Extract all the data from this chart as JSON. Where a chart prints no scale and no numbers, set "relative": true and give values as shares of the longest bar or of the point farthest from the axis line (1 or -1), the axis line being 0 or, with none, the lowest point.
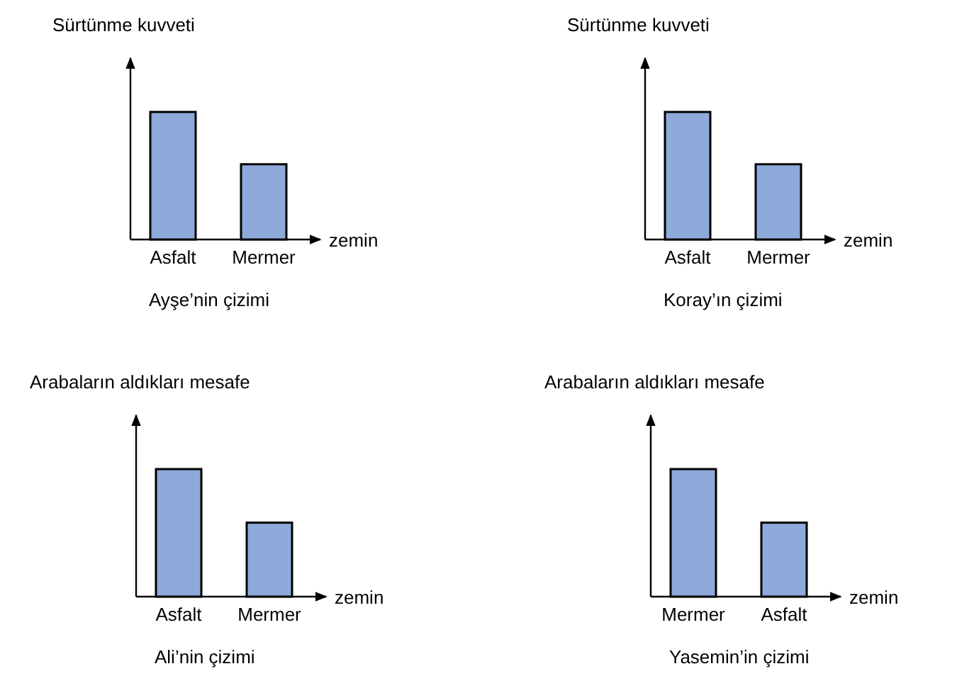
{
  "chart_data": [
    {
      "type": "bar",
      "title": "Ayşe’nin çizimi",
      "ylabel": "Sürtünme kuvveti",
      "xlabel": "zemin",
      "categories": [
        "Asfalt",
        "Mermer"
      ],
      "values": [
        1,
        0.59
      ],
      "color": "#8eaadb",
      "relative": true
    },
    {
      "type": "bar",
      "title": "Koray’ın çizimi",
      "ylabel": "Sürtünme kuvveti",
      "xlabel": "zemin",
      "categories": [
        "Asfalt",
        "Mermer"
      ],
      "values": [
        1,
        0.59
      ],
      "color": "#8eaadb",
      "relative": true
    },
    {
      "type": "bar",
      "title": "Ali’nin çizimi",
      "ylabel": "Arabaların aldıkları mesafe",
      "xlabel": "zemin",
      "categories": [
        "Asfalt",
        "Mermer"
      ],
      "values": [
        1,
        0.58
      ],
      "color": "#8eaadb",
      "relative": true
    },
    {
      "type": "bar",
      "title": "Yasemin’in çizimi",
      "ylabel": "Arabaların aldıkları mesafe",
      "xlabel": "zemin",
      "categories": [
        "Mermer",
        "Asfalt"
      ],
      "values": [
        1,
        0.58
      ],
      "color": "#8eaadb",
      "relative": true
    }
  ]
}
